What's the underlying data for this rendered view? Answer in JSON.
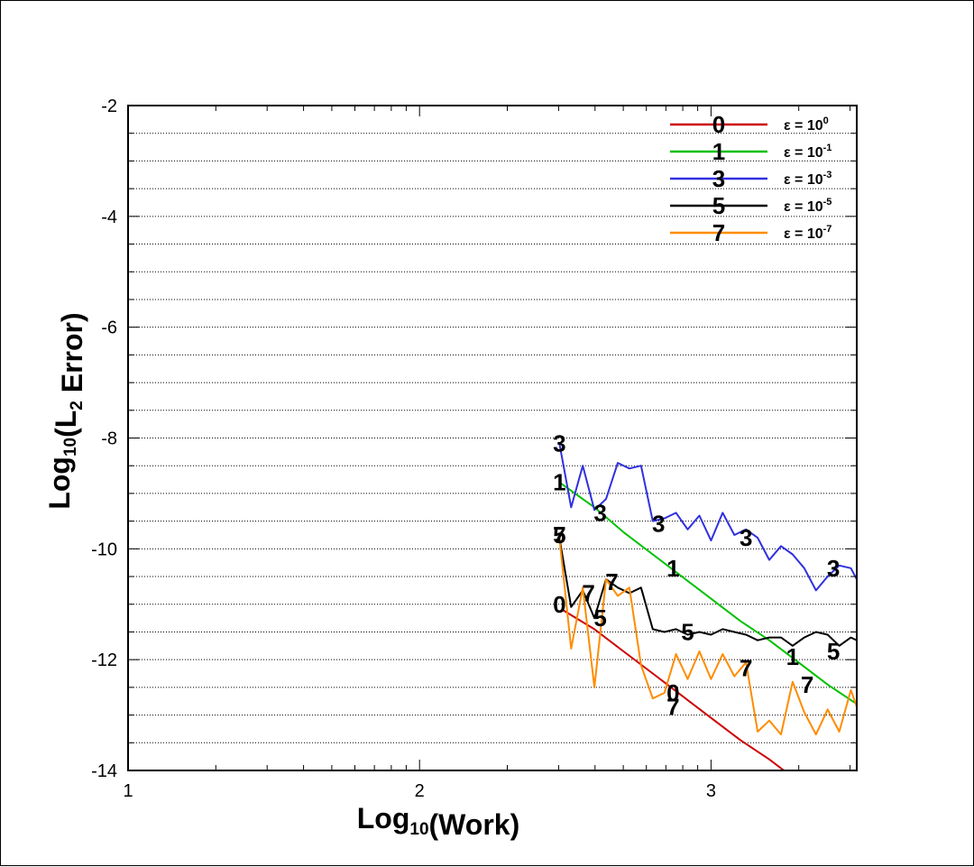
{
  "chart_data": {
    "type": "line",
    "xlabel": "Log10(Work)",
    "ylabel": "Log10(L2 Error)",
    "xlim": [
      1,
      3.5
    ],
    "ylim": [
      -14,
      -2
    ],
    "x_ticks": [
      "1",
      "2",
      "3"
    ],
    "y_ticks": [
      "-2",
      "-4",
      "-6",
      "-8",
      "-10",
      "-12",
      "-14"
    ],
    "grid": "horizontal dotted",
    "legend_position": "top-right",
    "series": [
      {
        "name": "ε = 10^0",
        "symbol": "0",
        "color": "#cc0000",
        "x": [
          2.49,
          2.6,
          2.7,
          2.8,
          2.9,
          3.0,
          3.1,
          3.2,
          3.25
        ],
        "y": [
          -11.1,
          -11.45,
          -11.85,
          -12.25,
          -12.65,
          -13.05,
          -13.45,
          -13.8,
          -14.0
        ],
        "marker_points": [
          [
            2.48,
            -11.0
          ],
          [
            2.87,
            -12.6
          ]
        ]
      },
      {
        "name": "ε = 10^-1",
        "symbol": "1",
        "color": "#00c000",
        "x": [
          2.48,
          2.6,
          2.7,
          2.8,
          2.9,
          3.0,
          3.1,
          3.2,
          3.3,
          3.4,
          3.5
        ],
        "y": [
          -8.8,
          -9.25,
          -9.7,
          -10.1,
          -10.5,
          -10.9,
          -11.3,
          -11.65,
          -12.05,
          -12.45,
          -12.8
        ],
        "marker_points": [
          [
            2.48,
            -8.8
          ],
          [
            2.87,
            -10.35
          ],
          [
            3.28,
            -11.95
          ]
        ]
      },
      {
        "name": "ε = 10^-3",
        "symbol": "3",
        "color": "#3030e0",
        "x": [
          2.48,
          2.52,
          2.56,
          2.6,
          2.64,
          2.68,
          2.72,
          2.76,
          2.8,
          2.84,
          2.88,
          2.92,
          2.96,
          3.0,
          3.04,
          3.08,
          3.12,
          3.16,
          3.2,
          3.24,
          3.28,
          3.32,
          3.36,
          3.4,
          3.44,
          3.48,
          3.5
        ],
        "y": [
          -8.1,
          -9.25,
          -8.5,
          -9.3,
          -9.1,
          -8.45,
          -8.55,
          -8.5,
          -9.5,
          -9.45,
          -9.35,
          -9.65,
          -9.4,
          -9.85,
          -9.35,
          -9.75,
          -9.65,
          -9.8,
          -10.2,
          -9.95,
          -10.1,
          -10.35,
          -10.75,
          -10.5,
          -10.3,
          -10.35,
          -10.55
        ],
        "marker_points": [
          [
            2.48,
            -8.1
          ],
          [
            2.62,
            -9.35
          ],
          [
            2.82,
            -9.55
          ],
          [
            3.12,
            -9.8
          ],
          [
            3.42,
            -10.35
          ]
        ]
      },
      {
        "name": "ε = 10^-5",
        "symbol": "5",
        "color": "#000000",
        "x": [
          2.48,
          2.52,
          2.56,
          2.6,
          2.64,
          2.68,
          2.72,
          2.76,
          2.8,
          2.84,
          2.88,
          2.92,
          2.96,
          3.0,
          3.04,
          3.08,
          3.12,
          3.16,
          3.2,
          3.24,
          3.28,
          3.32,
          3.36,
          3.4,
          3.44,
          3.48,
          3.5
        ],
        "y": [
          -9.8,
          -11.05,
          -10.75,
          -11.25,
          -10.55,
          -10.7,
          -10.8,
          -10.7,
          -11.45,
          -11.5,
          -11.45,
          -11.55,
          -11.5,
          -11.55,
          -11.45,
          -11.5,
          -11.55,
          -11.65,
          -11.6,
          -11.6,
          -11.75,
          -11.6,
          -11.5,
          -11.55,
          -11.75,
          -11.6,
          -11.65
        ],
        "marker_points": [
          [
            2.48,
            -9.75
          ],
          [
            2.62,
            -11.25
          ],
          [
            2.92,
            -11.5
          ],
          [
            3.42,
            -11.85
          ]
        ]
      },
      {
        "name": "ε = 10^-7",
        "symbol": "7",
        "color": "#ff8c00",
        "x": [
          2.48,
          2.52,
          2.56,
          2.6,
          2.64,
          2.68,
          2.72,
          2.76,
          2.8,
          2.84,
          2.88,
          2.92,
          2.96,
          3.0,
          3.04,
          3.08,
          3.12,
          3.16,
          3.2,
          3.24,
          3.28,
          3.32,
          3.36,
          3.4,
          3.44,
          3.48,
          3.5
        ],
        "y": [
          -9.8,
          -11.8,
          -10.7,
          -12.5,
          -10.55,
          -10.85,
          -10.7,
          -12.1,
          -12.7,
          -12.6,
          -11.9,
          -12.35,
          -11.85,
          -12.35,
          -11.9,
          -12.3,
          -12.05,
          -13.3,
          -13.1,
          -13.35,
          -12.4,
          -12.95,
          -13.35,
          -12.9,
          -13.3,
          -12.55,
          -12.85
        ],
        "marker_points": [
          [
            2.48,
            -9.75
          ],
          [
            2.58,
            -10.8
          ],
          [
            2.66,
            -10.6
          ],
          [
            2.87,
            -12.85
          ],
          [
            3.12,
            -12.15
          ],
          [
            3.33,
            -12.45
          ]
        ]
      }
    ]
  }
}
